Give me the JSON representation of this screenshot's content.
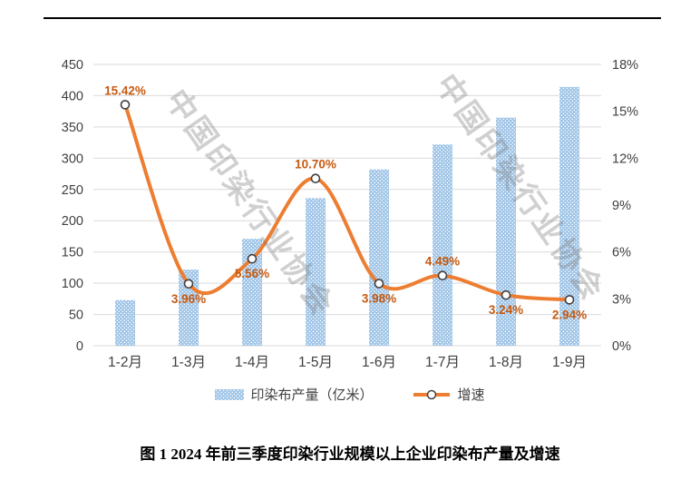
{
  "watermark": {
    "text": "中国印染行业协会"
  },
  "caption": "图 1 2024 年前三季度印染行业规模以上企业印染布产量及增速",
  "legend": {
    "bar_label": "印染布产量（亿米）",
    "line_label": "增速"
  },
  "colors": {
    "bar_fill": "#9dc3e6",
    "bar_dot": "#ffffff",
    "line": "#ed7d31",
    "data_label": "#c55a11",
    "marker_stroke": "#404040",
    "marker_fill": "#ffffff",
    "gridline": "#d9d9d9",
    "axis_text": "#404040",
    "top_rule": "#000000"
  },
  "chart_data": {
    "type": "bar",
    "subtype": "combo-bar-line",
    "categories": [
      "1-2月",
      "1-3月",
      "1-4月",
      "1-5月",
      "1-6月",
      "1-7月",
      "1-8月",
      "1-9月"
    ],
    "series": [
      {
        "name": "印染布产量（亿米）",
        "type": "bar",
        "axis": "left",
        "values": [
          73,
          122,
          171,
          236,
          282,
          322,
          365,
          414
        ]
      },
      {
        "name": "增速",
        "type": "line",
        "axis": "right",
        "values": [
          15.42,
          3.96,
          5.56,
          10.7,
          3.98,
          4.49,
          3.24,
          2.94
        ],
        "point_labels": [
          "15.42%",
          "3.96%",
          "5.56%",
          "10.70%",
          "3.98%",
          "4.49%",
          "3.24%",
          "2.94%"
        ],
        "label_side": [
          "above",
          "below",
          "below",
          "above",
          "below",
          "above",
          "below",
          "below"
        ],
        "smooth": true,
        "marker": "circle"
      }
    ],
    "left_axis": {
      "min": 0,
      "max": 450,
      "step": 50,
      "ticks": [
        "450",
        "400",
        "350",
        "300",
        "250",
        "200",
        "150",
        "100",
        "50",
        "0"
      ]
    },
    "right_axis": {
      "min": 0,
      "max": 18,
      "step": 3,
      "ticks": [
        "18%",
        "15%",
        "12%",
        "9%",
        "6%",
        "3%",
        "0%"
      ]
    },
    "grid": true,
    "legend_position": "bottom",
    "title": "图 1 2024 年前三季度印染行业规模以上企业印染布产量及增速",
    "xlabel": "",
    "ylabel_left": "印染布产量（亿米）",
    "ylabel_right": "增速"
  }
}
